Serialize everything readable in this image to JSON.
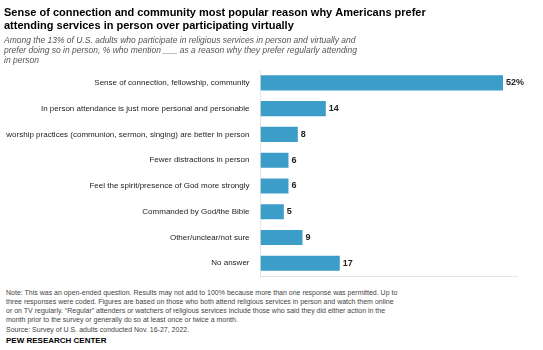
{
  "chart_data": {
    "type": "bar",
    "orientation": "horizontal",
    "title": "Sense of connection and community most popular reason why Americans prefer\nattending services in person over participating virtually",
    "subtitle": "Among the 13% of U.S. adults who participate in religious services in person and virtually and\nprefer doing so in person, % who mention ___ as a reason why they prefer regularly attending\nin person",
    "categories": [
      "Sense of connection, fellowship, community",
      "In person attendance is just more personal and personable",
      "The worship practices (communion, sermon, singing) are better in person",
      "Fewer distractions in person",
      "Feel the spirit/presence of God more strongly",
      "Commanded by God/the Bible",
      "Other/unclear/not sure",
      "No answer"
    ],
    "values": [
      52,
      14,
      8,
      6,
      6,
      5,
      9,
      17
    ],
    "value_labels": [
      "52%",
      "14",
      "8",
      "6",
      "6",
      "5",
      "9",
      "17"
    ],
    "color": "#3c9dc8",
    "xlim": [
      0,
      55
    ],
    "grid": false,
    "data_labels": true,
    "tick_labels": "y",
    "annotations": [
      "Note: This was an open-ended question. Results may not add to 100% because more than one response was permitted. Up to",
      "three responses were coded. Figures are based on those who both attend religious services in person and watch them online",
      "or on TV regularly. “Regular” attenders or watchers of religious services include those who said they did either action in the",
      "month prior to the survey or generally do so at least once or twice a month.",
      "Source: Survey of U.S. adults conducted Nov. 16-27, 2022.",
      "PEW RESEARCH CENTER"
    ]
  }
}
